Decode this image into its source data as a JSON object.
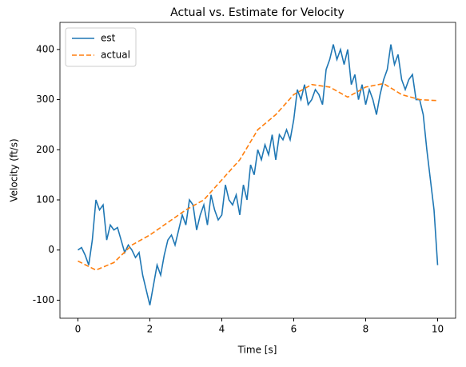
{
  "chart_data": {
    "type": "line",
    "title": "Actual vs. Estimate for Velocity",
    "x_label": "Time [s]",
    "y_label": "Velocity (ft/s)",
    "xlim": [
      -0.5,
      10.5
    ],
    "ylim": [
      -136,
      454
    ],
    "xticks": [
      0,
      2,
      4,
      6,
      8,
      10
    ],
    "yticks": [
      -100,
      0,
      100,
      200,
      300,
      400
    ],
    "legend": "upper left",
    "series": [
      {
        "name": "est",
        "color": "#1f77b4",
        "dash": "solid",
        "x": [
          0,
          0.1,
          0.2,
          0.3,
          0.4,
          0.5,
          0.6,
          0.7,
          0.8,
          0.9,
          1,
          1.1,
          1.2,
          1.3,
          1.4,
          1.5,
          1.6,
          1.7,
          1.8,
          1.9,
          2,
          2.1,
          2.2,
          2.3,
          2.4,
          2.5,
          2.6,
          2.7,
          2.8,
          2.9,
          3,
          3.1,
          3.2,
          3.3,
          3.4,
          3.5,
          3.6,
          3.7,
          3.8,
          3.9,
          4,
          4.1,
          4.2,
          4.3,
          4.4,
          4.5,
          4.6,
          4.7,
          4.8,
          4.9,
          5,
          5.1,
          5.2,
          5.3,
          5.4,
          5.5,
          5.6,
          5.7,
          5.8,
          5.9,
          6,
          6.1,
          6.2,
          6.3,
          6.4,
          6.5,
          6.6,
          6.7,
          6.8,
          6.9,
          7,
          7.1,
          7.2,
          7.3,
          7.4,
          7.5,
          7.6,
          7.7,
          7.8,
          7.9,
          8,
          8.1,
          8.2,
          8.3,
          8.4,
          8.5,
          8.6,
          8.7,
          8.8,
          8.9,
          9,
          9.1,
          9.2,
          9.3,
          9.4,
          9.5,
          9.6,
          9.7,
          9.8,
          9.9,
          10
        ],
        "values": [
          0,
          5,
          -10,
          -30,
          20,
          100,
          80,
          90,
          20,
          50,
          40,
          45,
          20,
          -5,
          10,
          0,
          -15,
          -5,
          -50,
          -80,
          -110,
          -70,
          -30,
          -50,
          -10,
          20,
          30,
          10,
          40,
          70,
          50,
          100,
          90,
          40,
          70,
          90,
          50,
          110,
          80,
          60,
          70,
          130,
          100,
          90,
          110,
          70,
          130,
          100,
          170,
          150,
          200,
          180,
          210,
          190,
          230,
          180,
          230,
          220,
          240,
          220,
          260,
          320,
          300,
          330,
          290,
          300,
          320,
          310,
          290,
          360,
          380,
          410,
          380,
          400,
          370,
          400,
          330,
          350,
          300,
          330,
          290,
          320,
          300,
          270,
          310,
          340,
          360,
          410,
          370,
          390,
          340,
          320,
          340,
          350,
          300,
          300,
          270,
          200,
          140,
          80,
          -30
        ]
      },
      {
        "name": "actual",
        "color": "#ff7f0e",
        "dash": "dashed",
        "x": [
          0,
          0.5,
          1,
          1.5,
          2,
          2.5,
          3,
          3.5,
          4,
          4.5,
          5,
          5.5,
          6,
          6.5,
          7,
          7.5,
          8,
          8.5,
          9,
          9.5,
          10
        ],
        "values": [
          -22,
          -40,
          -25,
          10,
          30,
          55,
          80,
          100,
          140,
          180,
          240,
          270,
          310,
          330,
          325,
          305,
          325,
          332,
          310,
          300,
          298
        ]
      }
    ]
  }
}
